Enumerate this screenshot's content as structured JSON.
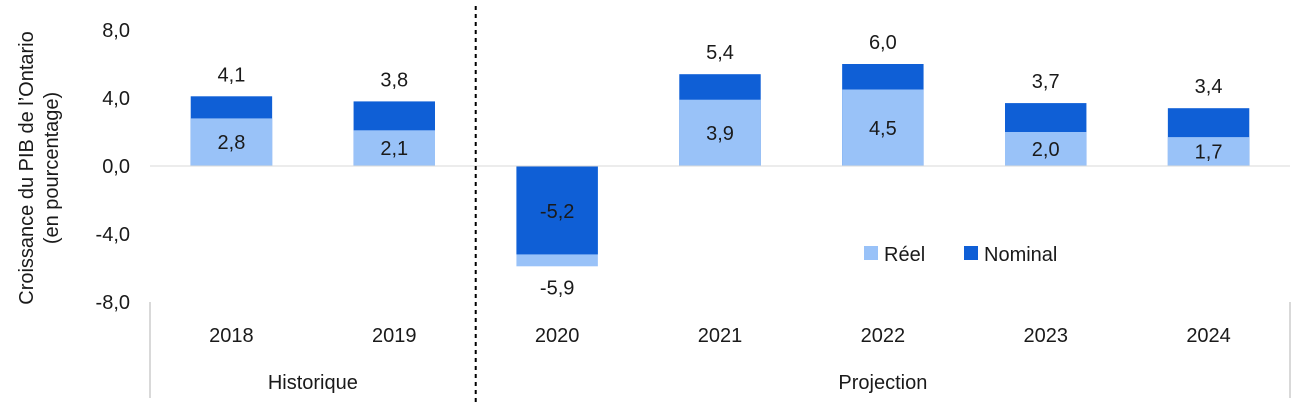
{
  "chart_data": {
    "type": "bar",
    "subtype": "overlapping",
    "ylabel_line1": "Croissance du PIB de l’Ontario",
    "ylabel_line2": "(en pourcentage)",
    "categories": [
      "2018",
      "2019",
      "2020",
      "2021",
      "2022",
      "2023",
      "2024"
    ],
    "groups": [
      {
        "label": "Historique",
        "categories": [
          "2018",
          "2019"
        ]
      },
      {
        "label": "Projection",
        "categories": [
          "2020",
          "2021",
          "2022",
          "2023",
          "2024"
        ]
      }
    ],
    "series": [
      {
        "name": "Réel",
        "color": "#99c2f8",
        "values": [
          2.8,
          2.1,
          -5.9,
          3.9,
          4.5,
          2.0,
          1.7
        ]
      },
      {
        "name": "Nominal",
        "color": "#0f5fd6",
        "values": [
          4.1,
          3.8,
          -5.2,
          5.4,
          6.0,
          3.7,
          3.4
        ]
      }
    ],
    "value_labels": {
      "Réel": [
        "2,8",
        "2,1",
        "-5,9",
        "3,9",
        "4,5",
        "2,0",
        "1,7"
      ],
      "Nominal": [
        "4,1",
        "3,8",
        "-5,2",
        "5,4",
        "6,0",
        "3,7",
        "3,4"
      ]
    },
    "yticks": [
      8,
      4,
      0,
      -4,
      -8
    ],
    "ytick_labels": [
      "8,0",
      "4,0",
      "0,0",
      "-4,0",
      "-8,0"
    ],
    "ylim": [
      -8,
      8
    ],
    "legend_position": "lower-right",
    "divider": "dashed line between 2019 and 2020",
    "grid": false
  }
}
